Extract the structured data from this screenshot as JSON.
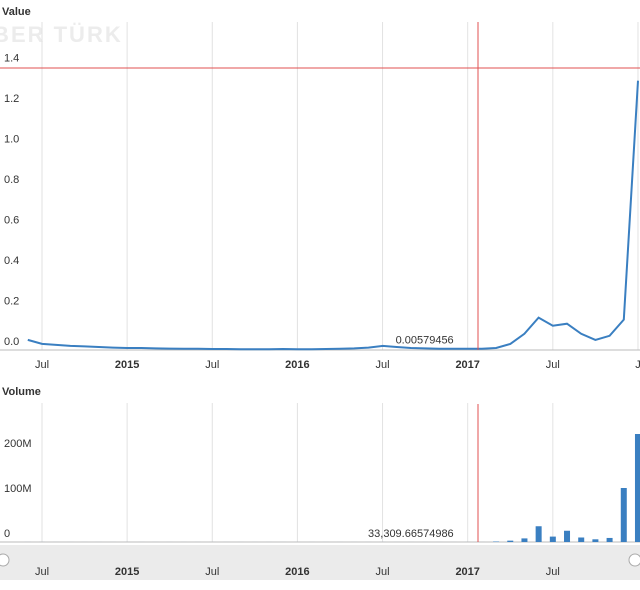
{
  "watermark": "HABER TÜRK",
  "chart_data": [
    {
      "type": "line",
      "title": "Value",
      "categories": [
        null,
        "Jul",
        null,
        null,
        null,
        null,
        null,
        "2015",
        null,
        null,
        null,
        null,
        null,
        "Jul",
        null,
        null,
        null,
        null,
        null,
        "2016",
        null,
        null,
        null,
        null,
        null,
        "Jul",
        null,
        null,
        null,
        null,
        null,
        "2017",
        null,
        null,
        null,
        null,
        null,
        "Jul",
        null,
        null,
        null,
        null,
        null,
        "J"
      ],
      "series": [
        {
          "name": "Value",
          "color": "#3a7fc1",
          "values": [
            0.05,
            0.03,
            0.025,
            0.02,
            0.018,
            0.015,
            0.012,
            0.01,
            0.01,
            0.008,
            0.007,
            0.006,
            0.006,
            0.005,
            0.005,
            0.004,
            0.004,
            0.004,
            0.005,
            0.004,
            0.004,
            0.005,
            0.006,
            0.008,
            0.012,
            0.02,
            0.015,
            0.01,
            0.008,
            0.006,
            0.006,
            0.00579456,
            0.006,
            0.01,
            0.03,
            0.08,
            0.16,
            0.12,
            0.13,
            0.08,
            0.05,
            0.07,
            0.15,
            1.33
          ],
          "value_labels": {
            "31": "0.00579456"
          }
        }
      ],
      "ylim": [
        0,
        1.6
      ],
      "yticks": [
        {
          "value": 0,
          "label": "0.0"
        },
        0.2,
        0.4,
        0.6,
        0.8,
        {
          "value": 1,
          "label": "1.0"
        },
        1.2,
        1.4
      ],
      "grid": true
    },
    {
      "type": "bar",
      "title": "Volume",
      "categories": [
        null,
        "Jul",
        null,
        null,
        null,
        null,
        null,
        "2015",
        null,
        null,
        null,
        null,
        null,
        "Jul",
        null,
        null,
        null,
        null,
        null,
        "2016",
        null,
        null,
        null,
        null,
        null,
        "Jul",
        null,
        null,
        null,
        null,
        null,
        "2017",
        null,
        null,
        null,
        null,
        null,
        "Jul",
        null,
        null,
        null,
        null,
        null,
        null
      ],
      "series": [
        {
          "name": "Volume",
          "color": "#3a7fc1",
          "values": [
            60000,
            50000,
            40000,
            40000,
            30000,
            30000,
            30000,
            30000,
            30000,
            30000,
            30000,
            30000,
            30000,
            30000,
            30000,
            30000,
            30000,
            30000,
            30000,
            30000,
            30000,
            30000,
            30000,
            30000,
            40000,
            50000,
            40000,
            40000,
            30000,
            30000,
            30000,
            33309.66574986,
            40000,
            1000000,
            3000000,
            8000000,
            35000000,
            12000000,
            25000000,
            10000000,
            6000000,
            9000000,
            120000000,
            240000000
          ],
          "value_labels": {
            "31": "33,309.66574986"
          }
        }
      ],
      "ylim": [
        0,
        300000000
      ],
      "yticks": [
        0,
        {
          "value": 100000000,
          "label": "100M"
        },
        {
          "value": 200000000,
          "label": "200M"
        }
      ],
      "grid": true
    }
  ]
}
